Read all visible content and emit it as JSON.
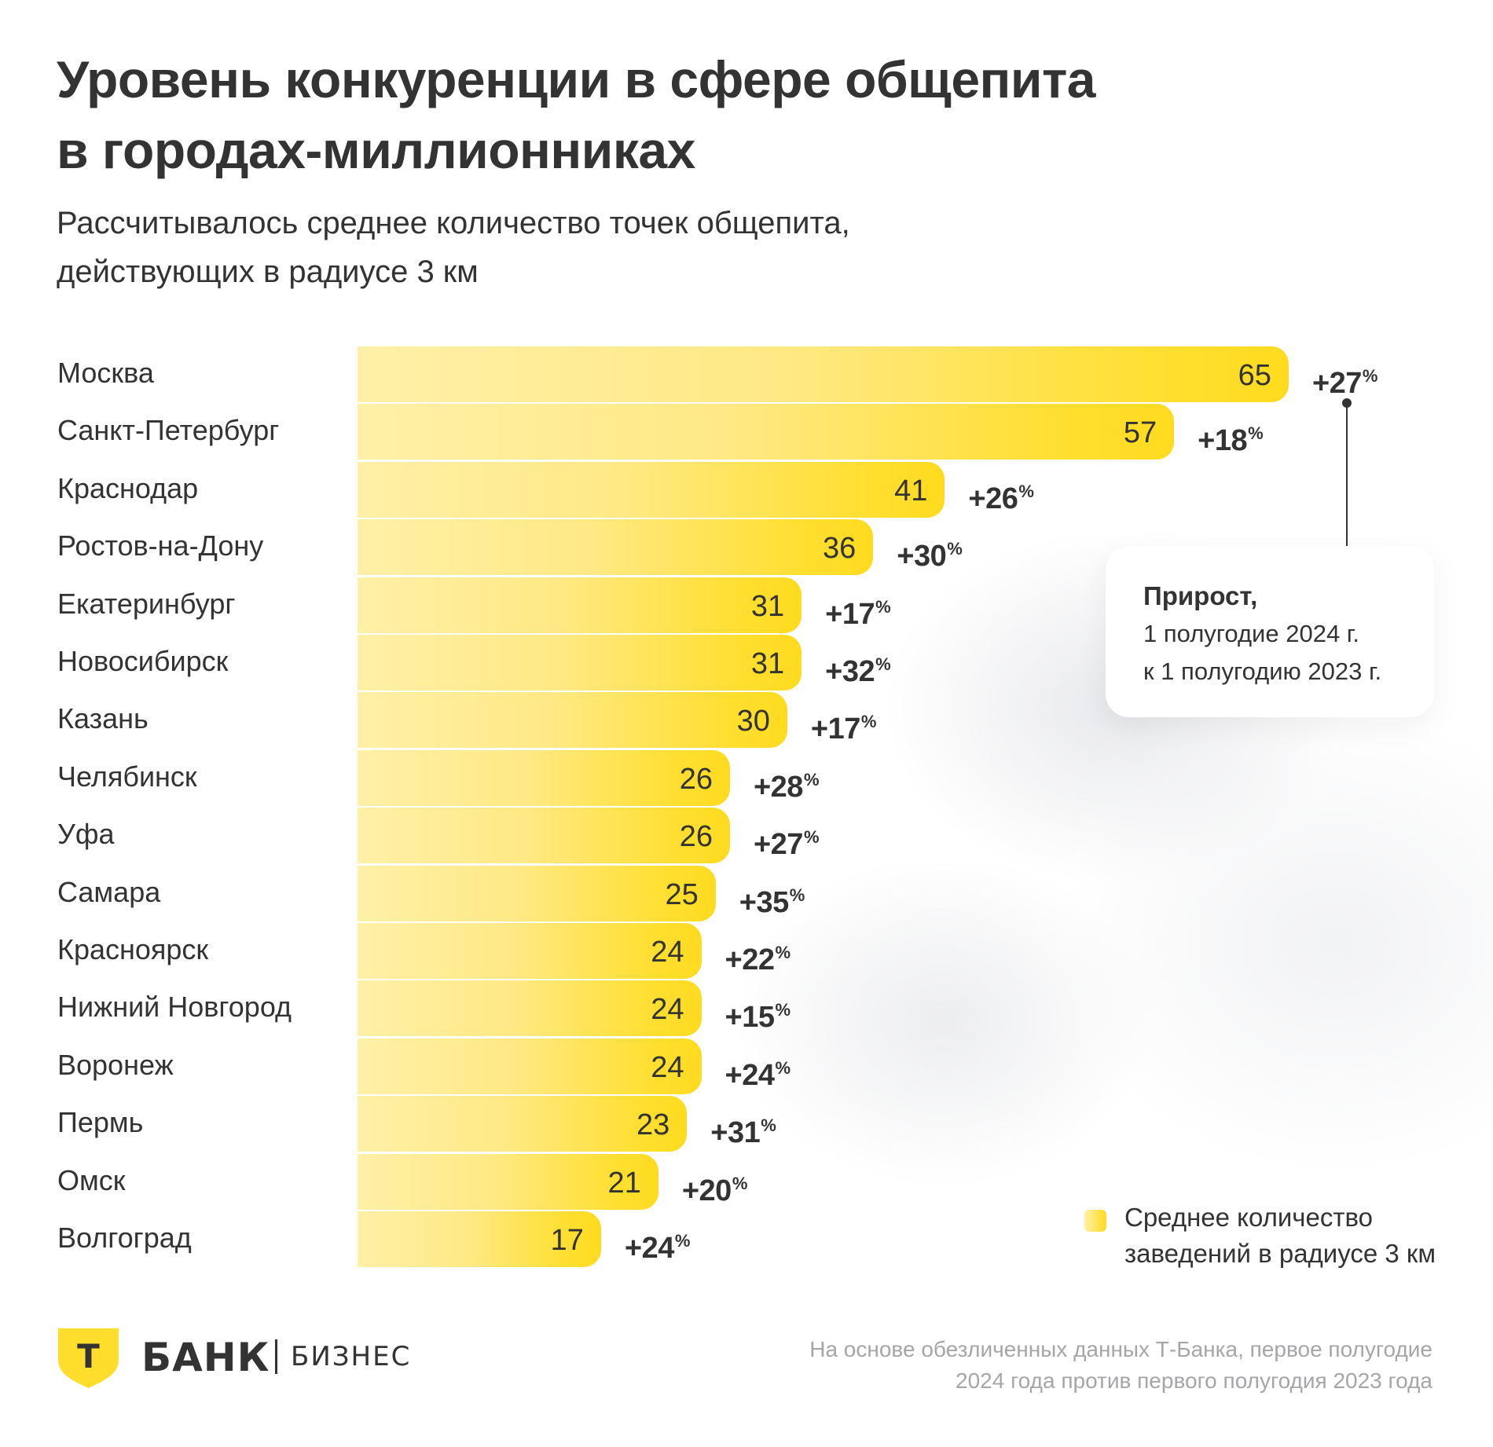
{
  "header": {
    "title_lines": [
      "Уровень конкуренции в сфере общепита",
      "в городах-миллионниках"
    ],
    "subtitle_lines": [
      "Рассчитывалось среднее количество точек общепита,",
      "действующих в радиусе 3 км"
    ]
  },
  "chart_data": {
    "type": "bar",
    "orientation": "horizontal",
    "title": "Уровень конкуренции в сфере общепита в городах-миллионниках",
    "subtitle": "Рассчитывалось среднее количество точек общепита, действующих в радиусе 3 км",
    "xlabel": "",
    "ylabel": "",
    "xlim": [
      0,
      65
    ],
    "grid": false,
    "categories": [
      "Москва",
      "Санкт-Петербург",
      "Краснодар",
      "Ростов-на-Дону",
      "Екатеринбург",
      "Новосибирск",
      "Казань",
      "Челябинск",
      "Уфа",
      "Самара",
      "Красноярск",
      "Нижний Новгород",
      "Воронеж",
      "Пермь",
      "Омск",
      "Волгоград"
    ],
    "series": [
      {
        "name": "Среднее количество заведений в радиусе 3 км",
        "values": [
          65,
          57,
          41,
          36,
          31,
          31,
          30,
          26,
          26,
          25,
          24,
          24,
          24,
          23,
          21,
          17
        ]
      },
      {
        "name": "Прирост, 1 полугодие 2024 г. к 1 полугодию 2023 г.",
        "unit": "%",
        "values": [
          27,
          18,
          26,
          30,
          17,
          32,
          17,
          28,
          27,
          35,
          22,
          15,
          24,
          31,
          20,
          24
        ]
      }
    ],
    "legend": {
      "placement": "bottom-right",
      "entries": [
        "Среднее количество заведений в радиусе 3 км"
      ]
    },
    "annotation": {
      "title": "Прирост,",
      "lines": [
        "1 полугодие 2024 г.",
        "к 1 полугодию 2023 г."
      ]
    },
    "colors": {
      "bar_start": "#fff0a8",
      "bar_end": "#ffdb1f",
      "text": "#333333"
    }
  },
  "legend": {
    "lines": [
      "Среднее количество",
      "заведений в радиусе 3 км"
    ]
  },
  "callout": {
    "title": "Прирост,",
    "lines": [
      "1 полугодие 2024 г.",
      "к 1 полугодию 2023 г."
    ]
  },
  "growth_suffix": "%",
  "growth_prefix": "+",
  "footer": {
    "logo_letter": "Т",
    "logo_bank": "БАНК",
    "logo_business": "БИЗНЕС",
    "source_lines": [
      "На основе обезличенных данных Т-Банка, первое полугодие",
      "2024 года против первого полугодия 2023 года"
    ]
  }
}
